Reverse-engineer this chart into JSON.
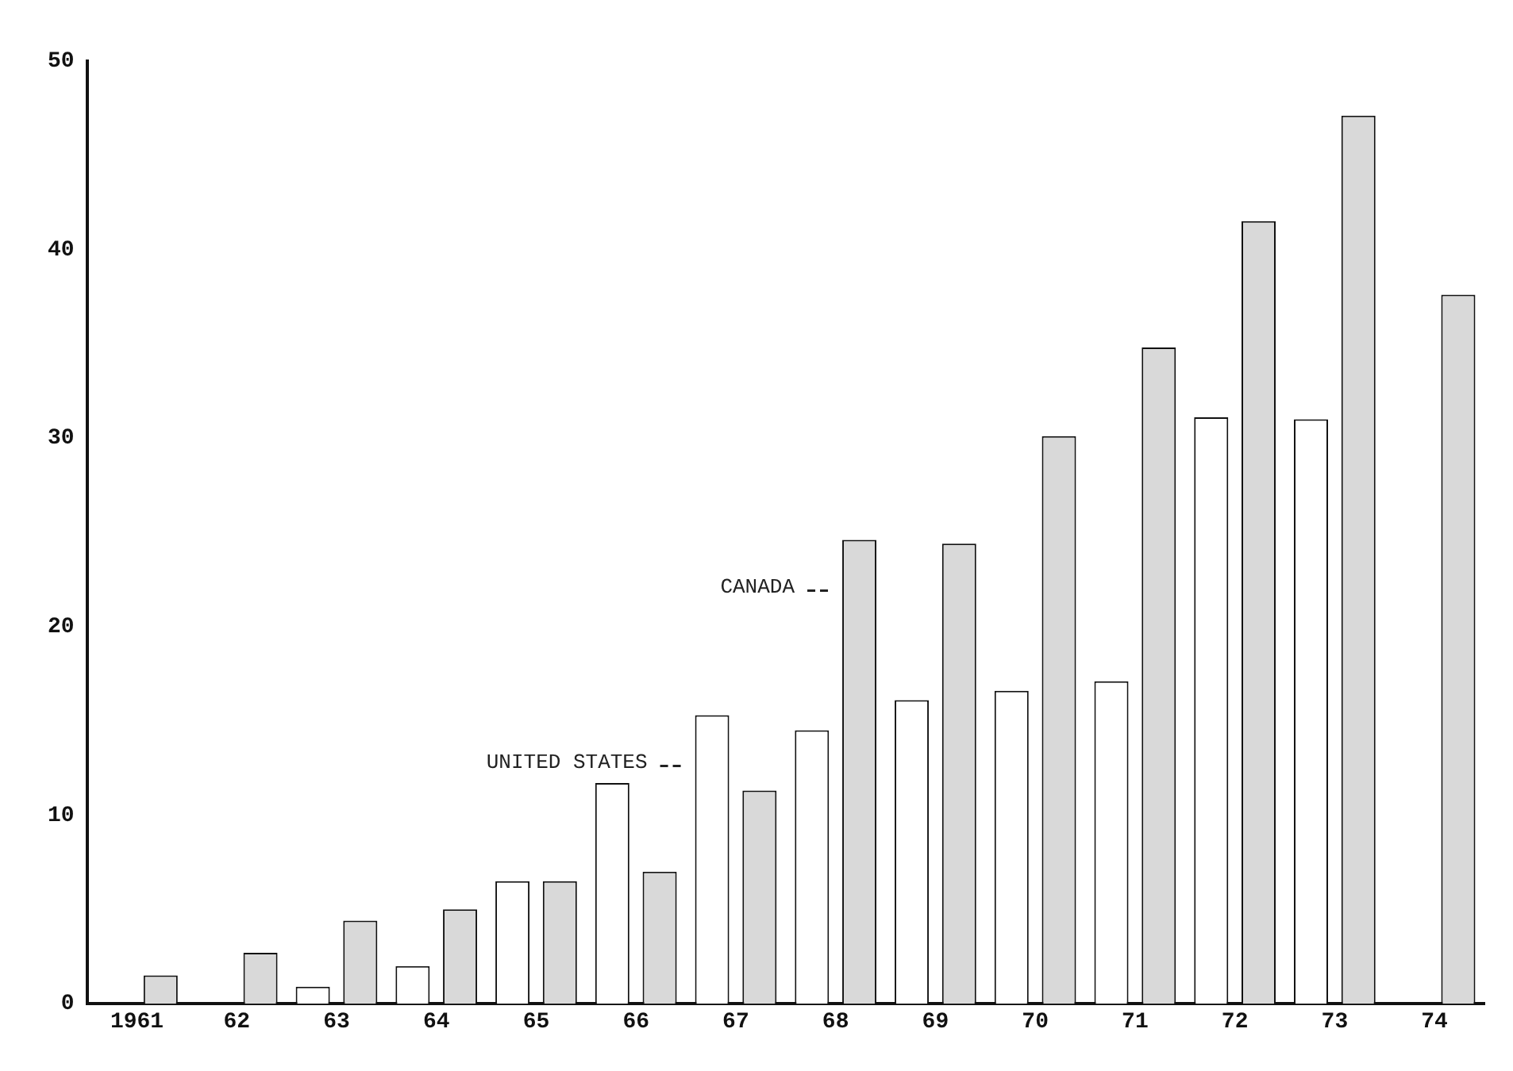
{
  "chart_data": {
    "type": "bar",
    "categories": [
      "1961",
      "62",
      "63",
      "64",
      "65",
      "66",
      "67",
      "68",
      "69",
      "70",
      "71",
      "72",
      "73",
      "74"
    ],
    "series": [
      {
        "name": "UNITED STATES",
        "color": "#ffffff",
        "values": [
          0,
          0,
          0.9,
          2.0,
          6.5,
          11.7,
          15.3,
          14.5,
          16.1,
          16.6,
          17.1,
          31.1,
          31.0,
          0
        ]
      },
      {
        "name": "CANADA",
        "color": "#d9d9d9",
        "values": [
          1.5,
          2.7,
          4.4,
          5.0,
          6.5,
          7.0,
          11.3,
          24.6,
          24.4,
          30.1,
          34.8,
          41.5,
          47.1,
          37.6
        ]
      }
    ],
    "ylim": [
      0,
      50
    ],
    "yticks": [
      0,
      10,
      20,
      30,
      40,
      50
    ],
    "grid": false,
    "legend": false
  }
}
